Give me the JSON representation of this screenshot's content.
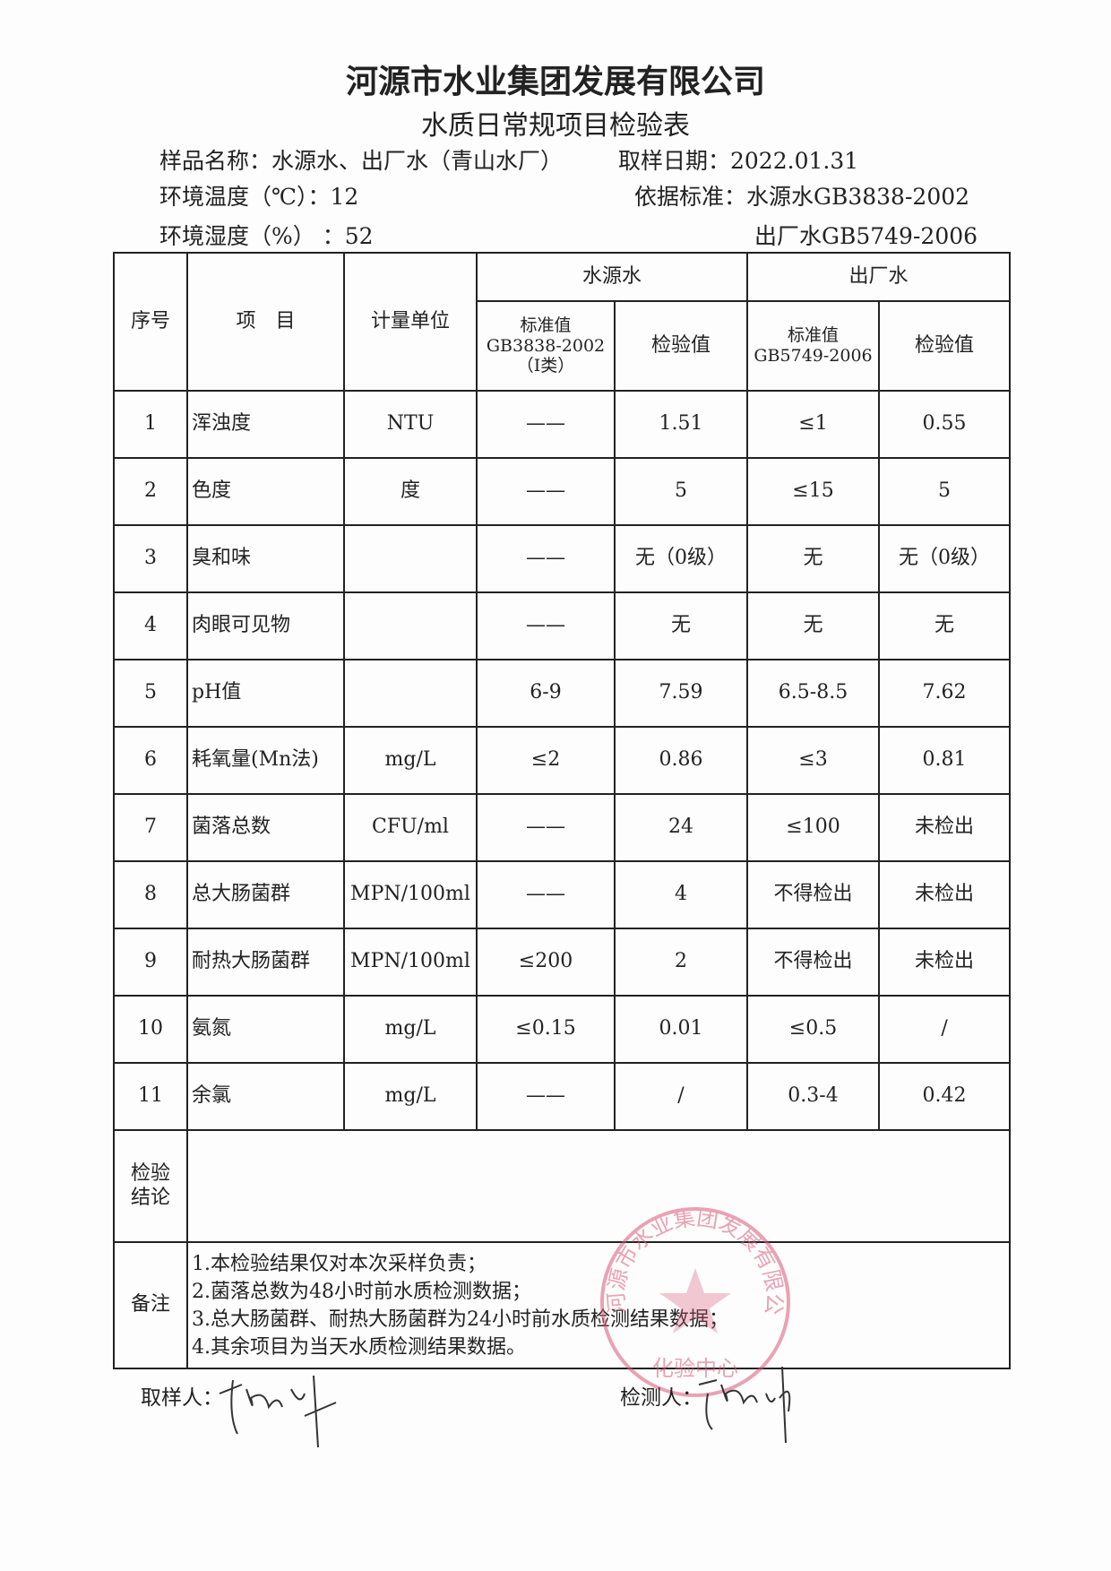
{
  "header": {
    "company": "河源市水业集团发展有限公司",
    "form_title": "水质日常规项目检验表",
    "sample_name": "样品名称：水源水、出厂水（青山水厂）",
    "sample_date": "取样日期：2022.01.31",
    "temperature": "环境温度（℃）：12",
    "standard_basis": "依据标准：水源水GB3838-2002",
    "humidity": "环境湿度（%）  ：52",
    "standard_basis_2": "出厂水GB5749-2006"
  },
  "table": {
    "headers": {
      "no": "序号",
      "item": "项　目",
      "unit": "计量单位",
      "source_group": "水源水",
      "output_group": "出厂水",
      "source_std": [
        "标准值",
        "GB3838-2002",
        "（Ⅰ类）"
      ],
      "source_val": "检验值",
      "output_std": [
        "标准值",
        "GB5749-2006"
      ],
      "output_val": "检验值"
    },
    "rows": [
      [
        "1",
        "浑浊度",
        "NTU",
        "——",
        "1.51",
        "≤1",
        "0.55"
      ],
      [
        "2",
        "色度",
        "度",
        "——",
        "5",
        "≤15",
        "5"
      ],
      [
        "3",
        "臭和味",
        "",
        "——",
        "无（0级）",
        "无",
        "无（0级）"
      ],
      [
        "4",
        "肉眼可见物",
        "",
        "——",
        "无",
        "无",
        "无"
      ],
      [
        "5",
        "pH值",
        "",
        "6-9",
        "7.59",
        "6.5-8.5",
        "7.62"
      ],
      [
        "6",
        "耗氧量(Mn法)",
        "mg/L",
        "≤2",
        "0.86",
        "≤3",
        "0.81"
      ],
      [
        "7",
        "菌落总数",
        "CFU/ml",
        "——",
        "24",
        "≤100",
        "未检出"
      ],
      [
        "8",
        "总大肠菌群",
        "MPN/100ml",
        "——",
        "4",
        "不得检出",
        "未检出"
      ],
      [
        "9",
        "耐热大肠菌群",
        "MPN/100ml",
        "≤200",
        "2",
        "不得检出",
        "未检出"
      ],
      [
        "10",
        "氨氮",
        "mg/L",
        "≤0.15",
        "0.01",
        "≤0.5",
        "/"
      ],
      [
        "11",
        "余氯",
        "mg/L",
        "——",
        "/",
        "0.3-4",
        "0.42"
      ]
    ],
    "conclusion_label": [
      "检验",
      "结论"
    ],
    "conclusion": "",
    "remarks_label": "备注",
    "remarks": [
      "1.本检验结果仅对本次采样负责；",
      "2.菌落总数为48小时前水质检测数据；",
      "3.总大肠菌群、耐热大肠菌群为24小时前水质检测结果数据；",
      "4.其余项目为当天水质检测结果数据。"
    ]
  },
  "footer": {
    "sampler_label": "取样人：",
    "tester_label": "检测人："
  },
  "stamp": {
    "text": "河源市水业集团发展有限公司",
    "bottom_text": "化验中心",
    "color": "#d9587a"
  }
}
